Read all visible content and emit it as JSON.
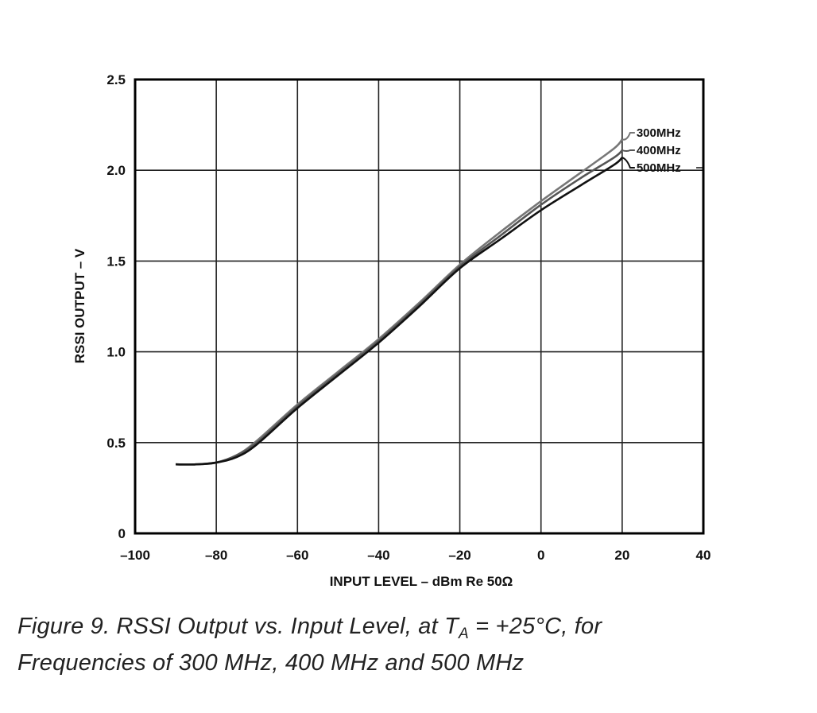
{
  "chart_data": {
    "type": "line",
    "title": "",
    "xlabel": "INPUT LEVEL – dBm Re 50Ω",
    "ylabel": "RSSI OUTPUT – V",
    "xlim": [
      -100,
      40
    ],
    "ylim": [
      0,
      2.5
    ],
    "xticks": [
      -100,
      -80,
      -60,
      -40,
      -20,
      0,
      20,
      40
    ],
    "xtick_labels": [
      "–100",
      "–80",
      "–60",
      "–40",
      "–20",
      "0",
      "20",
      "40"
    ],
    "yticks": [
      0,
      0.5,
      1.0,
      1.5,
      2.0,
      2.5
    ],
    "ytick_labels": [
      "0",
      "0.5",
      "1.0",
      "1.5",
      "2.0",
      "2.5"
    ],
    "grid": true,
    "legend_placement": "right (labels at curve ends)",
    "series": [
      {
        "name": "300MHz",
        "color": "#777777",
        "x": [
          -90,
          -85,
          -80,
          -75,
          -70,
          -60,
          -50,
          -40,
          -30,
          -20,
          -10,
          0,
          10,
          18,
          20
        ],
        "y": [
          0.38,
          0.38,
          0.39,
          0.43,
          0.51,
          0.71,
          0.89,
          1.07,
          1.27,
          1.48,
          1.66,
          1.83,
          1.99,
          2.12,
          2.17
        ]
      },
      {
        "name": "400MHz",
        "color": "#555555",
        "x": [
          -90,
          -85,
          -80,
          -75,
          -70,
          -60,
          -50,
          -40,
          -30,
          -20,
          -10,
          0,
          10,
          18,
          20
        ],
        "y": [
          0.38,
          0.38,
          0.39,
          0.43,
          0.5,
          0.7,
          0.88,
          1.06,
          1.26,
          1.47,
          1.64,
          1.81,
          1.96,
          2.07,
          2.11
        ]
      },
      {
        "name": "500MHz",
        "color": "#111111",
        "x": [
          -90,
          -85,
          -80,
          -75,
          -70,
          -60,
          -50,
          -40,
          -30,
          -20,
          -10,
          0,
          10,
          18,
          20
        ],
        "y": [
          0.38,
          0.38,
          0.39,
          0.42,
          0.49,
          0.69,
          0.87,
          1.05,
          1.25,
          1.46,
          1.62,
          1.78,
          1.92,
          2.03,
          2.07
        ]
      }
    ]
  },
  "caption": {
    "line1_prefix": "Figure 9.  RSSI Output vs. Input Level, at T",
    "line1_sub": "A",
    "line1_suffix": " = +25°C, for",
    "line2": "Frequencies of 300 MHz, 400 MHz and 500 MHz"
  }
}
